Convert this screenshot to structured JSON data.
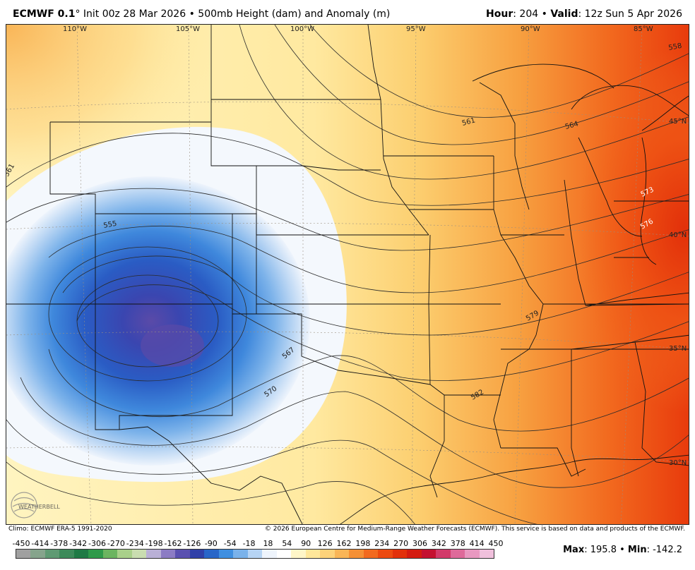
{
  "header": {
    "model": "ECMWF 0.1",
    "degree": "°",
    "init": "Init 00z 28 Mar 2026",
    "bullet": "•",
    "product": "500mb Height (dam) and Anomaly (m)",
    "hour_label": "Hour",
    "hour_value": ": 204",
    "valid_label": "Valid",
    "valid_value": ": 12z Sun 5 Apr 2026"
  },
  "map": {
    "longitude_labels": [
      "110°W",
      "105°W",
      "100°W",
      "95°W",
      "90°W",
      "85°W"
    ],
    "latitude_labels": [
      "45°N",
      "40°N",
      "35°N",
      "30°N"
    ],
    "contour_labels": [
      "558",
      "561",
      "564",
      "573",
      "576",
      "579",
      "582",
      "555",
      "567",
      "570",
      "561"
    ],
    "logo_text": "WEATHERBELL"
  },
  "footer": {
    "climo": "Climo: ECMWF ERA-5 1991-2020",
    "copyright": "© 2026 European Centre for Medium-Range Weather Forecasts (ECMWF). This service is based on data and products of the ECMWF."
  },
  "colorbar": {
    "labels": [
      "-450",
      "-414",
      "-378",
      "-342",
      "-306",
      "-270",
      "-234",
      "-198",
      "-162",
      "-126",
      "-90",
      "-54",
      "-18",
      "18",
      "54",
      "90",
      "126",
      "162",
      "198",
      "234",
      "270",
      "306",
      "342",
      "378",
      "414",
      "450"
    ],
    "colors": [
      "#a0a0a0",
      "#86a48c",
      "#5f9a73",
      "#3d8a5a",
      "#1f7a45",
      "#2f9a4a",
      "#6cb560",
      "#a9d08a",
      "#c9ddb0",
      "#b9b0d6",
      "#8c7cc4",
      "#5a50b0",
      "#3040a8",
      "#2866c8",
      "#3f8fe0",
      "#7ab2ea",
      "#b6d4f4",
      "#eef4fc",
      "#ffffff",
      "#fff6c8",
      "#ffe79a",
      "#fdd27a",
      "#f9b557",
      "#f59035",
      "#f26a1f",
      "#ec4a10",
      "#e2300a",
      "#d41b10",
      "#c41030",
      "#d23a6a",
      "#de6a9a",
      "#e898c0",
      "#f0c0dc"
    ],
    "max_label": "Max",
    "max_value": ": 195.8",
    "min_label": "Min",
    "min_value": ": -142.2",
    "bullet": "•"
  }
}
